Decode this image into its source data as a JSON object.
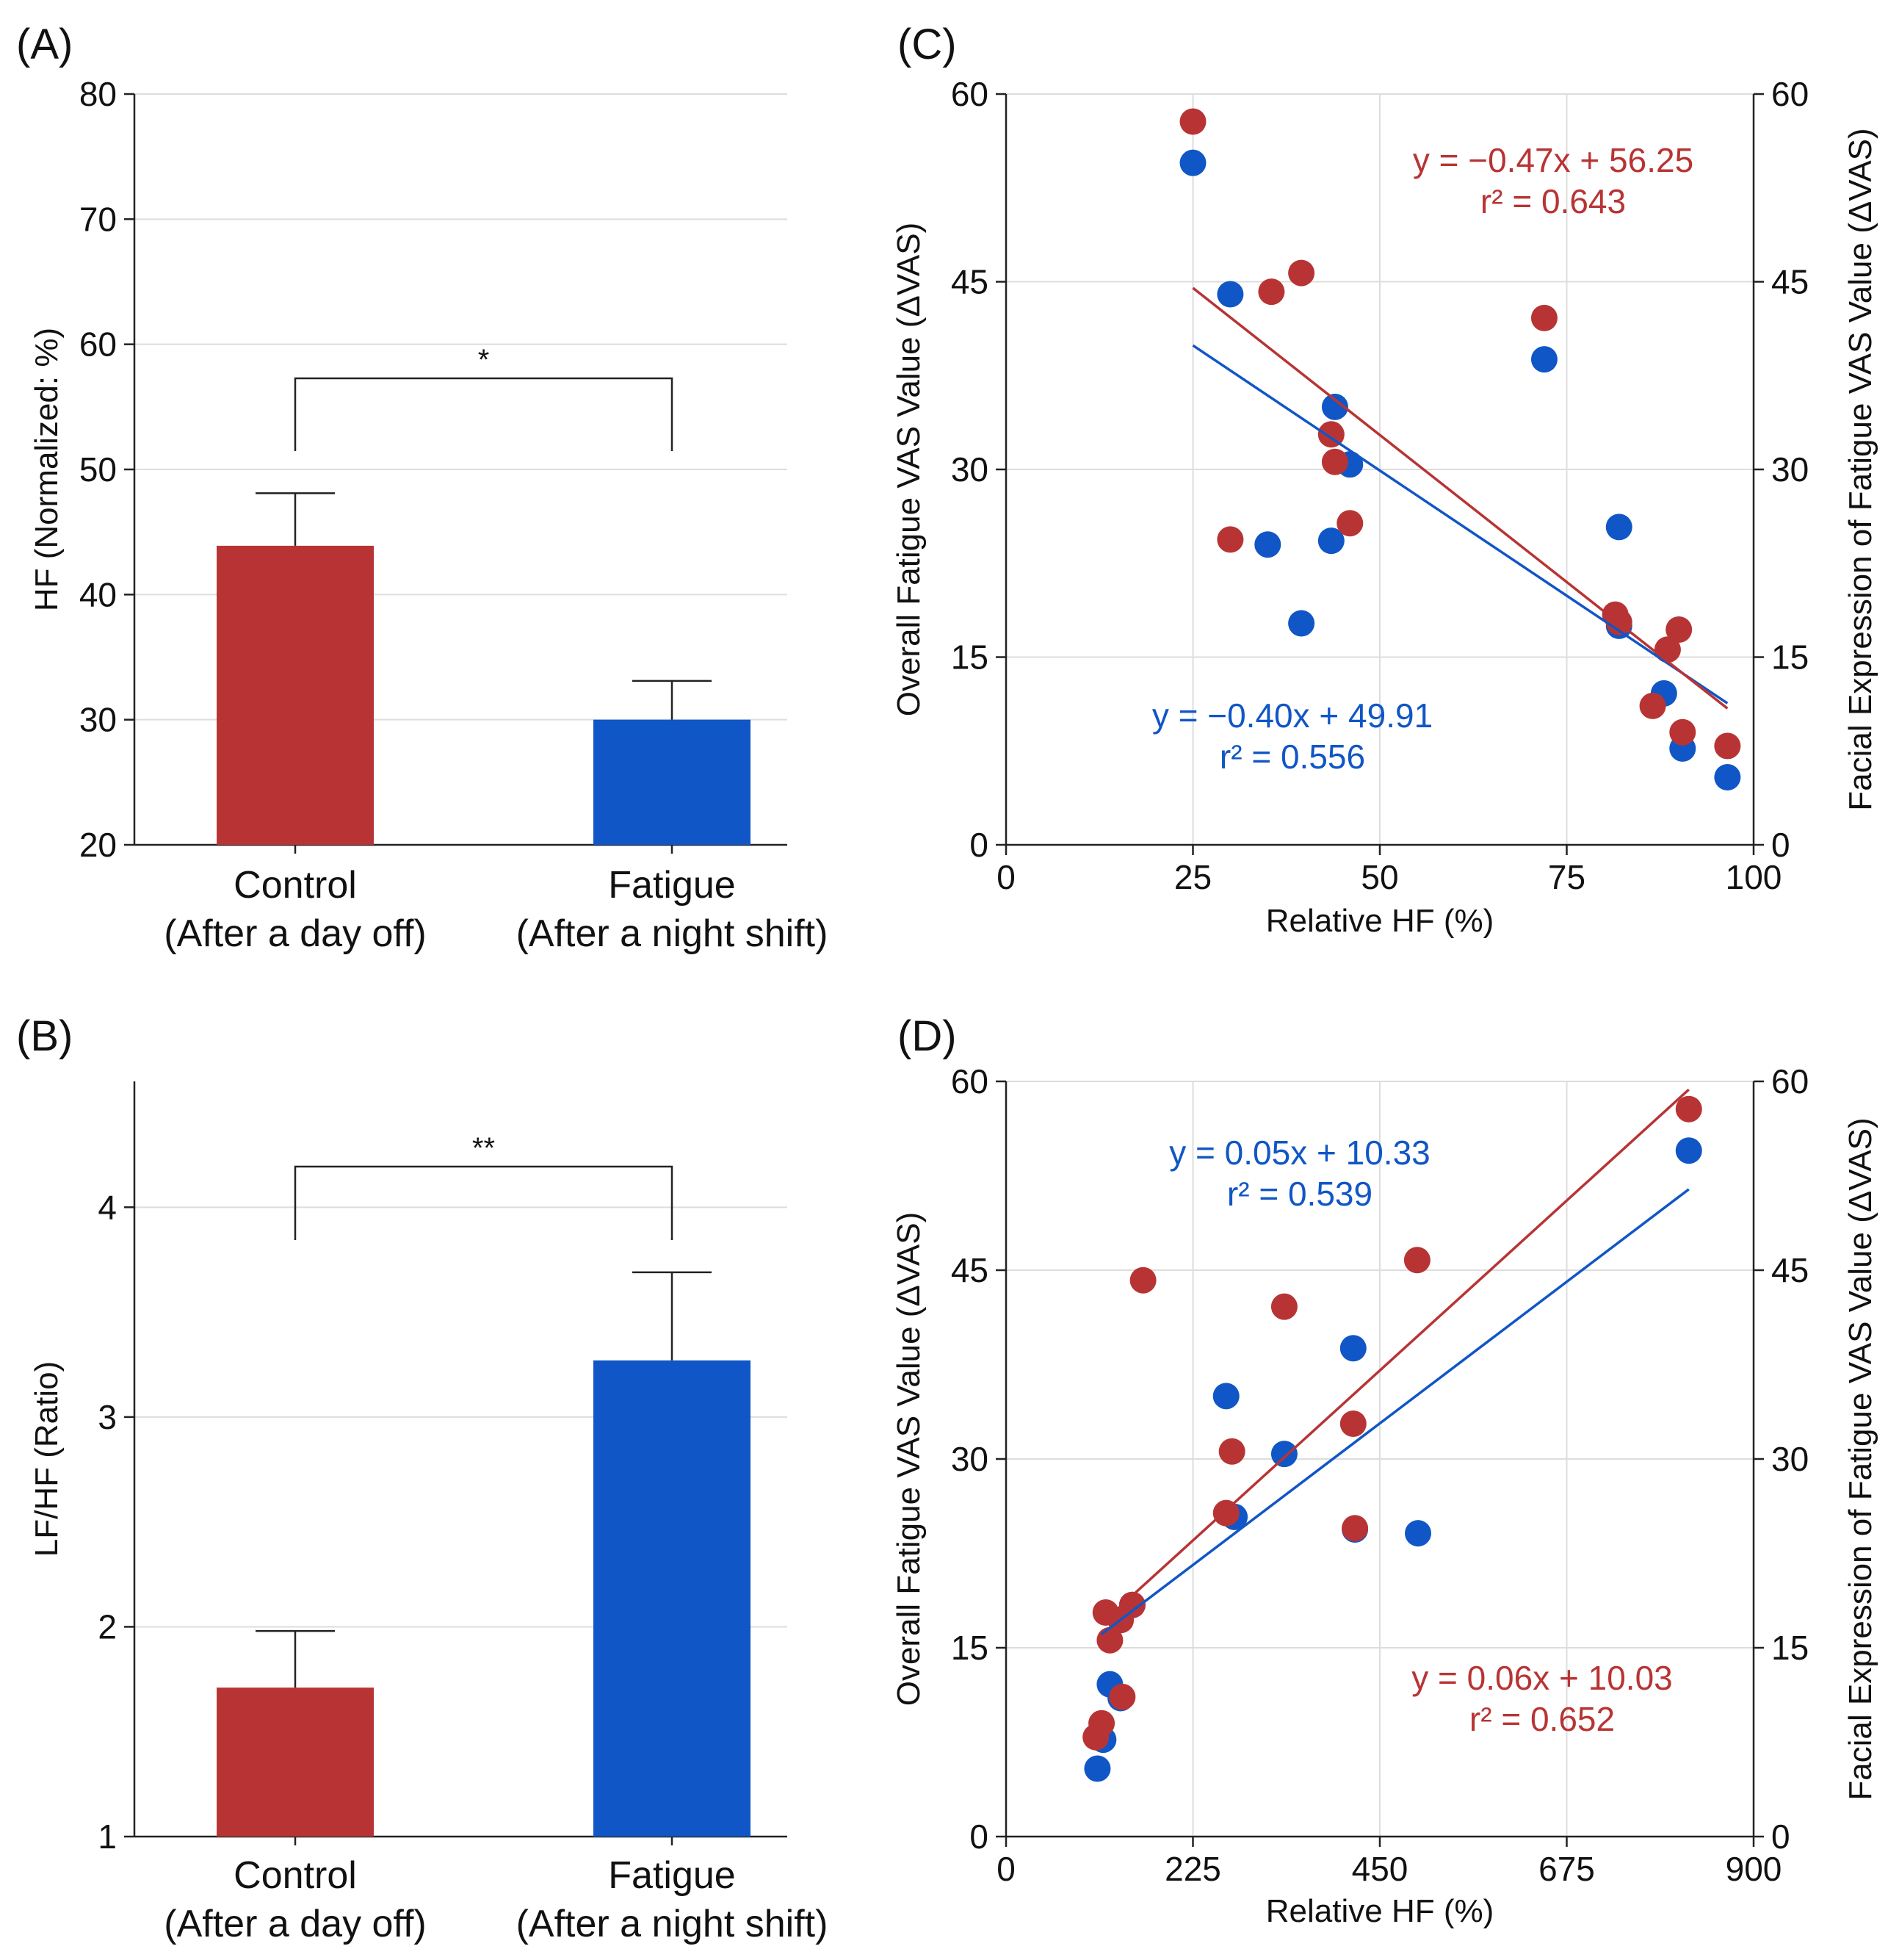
{
  "colors": {
    "red": "#B83434",
    "blue": "#1056C6",
    "grid": "#dddddd",
    "axis": "#222222"
  },
  "chart_data": [
    {
      "panel": "(A)",
      "type": "bar",
      "categories": [
        "Control",
        "Fatigue"
      ],
      "category_sublabels": [
        "(After a day off)",
        "(After a night shift)"
      ],
      "values": [
        43.9,
        30.0
      ],
      "errors": [
        4.2,
        3.1
      ],
      "colors": [
        "#B83434",
        "#1056C6"
      ],
      "ylabel": "HF (Normalized: %)",
      "ylim": [
        20,
        80
      ],
      "yticks": [
        "20",
        "30",
        "40",
        "50",
        "60",
        "70",
        "80"
      ],
      "significance": "*",
      "grid": true
    },
    {
      "panel": "(B)",
      "type": "bar",
      "categories": [
        "Control",
        "Fatigue"
      ],
      "category_sublabels": [
        "(After a day off)",
        "(After a night shift)"
      ],
      "values": [
        1.71,
        3.27
      ],
      "errors": [
        0.27,
        0.42
      ],
      "colors": [
        "#B83434",
        "#1056C6"
      ],
      "ylabel": "LF/HF (Ratio)",
      "ylim": [
        1,
        4.6
      ],
      "yticks": [
        "1",
        "2",
        "3",
        "4"
      ],
      "significance": "**",
      "grid": true
    },
    {
      "panel": "(C)",
      "type": "scatter",
      "xlabel": "Relative HF (%)",
      "ylabel_left": "Overall Fatigue VAS Value (ΔVAS)",
      "ylabel_right": "Facial Expression of Fatigue VAS Value (ΔVAS)",
      "xlim": [
        0,
        100
      ],
      "ylim": [
        0,
        60
      ],
      "xticks": [
        "0",
        "25",
        "50",
        "75",
        "100"
      ],
      "yticks": [
        "0",
        "15",
        "30",
        "45",
        "60"
      ],
      "series": [
        {
          "name": "Overall Fatigue",
          "color": "#1056C6",
          "x": [
            25,
            30,
            35,
            39.5,
            43.5,
            44,
            46,
            72,
            82,
            82,
            88,
            90.5,
            96.5
          ],
          "y": [
            54.5,
            44,
            24,
            17.7,
            24.3,
            35,
            30.4,
            38.8,
            25.4,
            17.5,
            12.1,
            7.7,
            5.4
          ],
          "fit": {
            "slope": -0.4,
            "intercept": 49.91,
            "x_range": [
              25,
              96.5
            ]
          },
          "equation": "y = −0.40x + 49.91",
          "r2": "r² = 0.556"
        },
        {
          "name": "Facial Expression of Fatigue",
          "color": "#B83434",
          "x": [
            25,
            30,
            35.5,
            39.5,
            43.5,
            44,
            46,
            72,
            81.5,
            82,
            86.5,
            88.5,
            90,
            90.5,
            96.5
          ],
          "y": [
            57.8,
            24.4,
            44.2,
            45.7,
            32.8,
            30.6,
            25.7,
            42.1,
            18.4,
            17.8,
            11.1,
            15.6,
            17.2,
            9,
            7.9
          ],
          "fit": {
            "slope": -0.47,
            "intercept": 56.25,
            "x_range": [
              25,
              96.5
            ]
          },
          "equation": "y = −0.47x + 56.25",
          "r2": "r² = 0.643"
        }
      ]
    },
    {
      "panel": "(D)",
      "type": "scatter",
      "xlabel": "Relative HF (%)",
      "ylabel_left": "Overall Fatigue VAS Value (ΔVAS)",
      "ylabel_right": "Facial Expression of Fatigue VAS Value (ΔVAS)",
      "xlim": [
        0,
        900
      ],
      "ylim": [
        0,
        60
      ],
      "xticks": [
        "0",
        "225",
        "450",
        "675",
        "900"
      ],
      "yticks": [
        "0",
        "15",
        "30",
        "45",
        "60"
      ],
      "series": [
        {
          "name": "Overall Fatigue",
          "color": "#1056C6",
          "x": [
            110,
            117,
            125,
            138,
            152,
            265,
            275,
            335,
            418,
            420,
            496,
            822
          ],
          "y": [
            5.4,
            7.7,
            12.1,
            11,
            18.4,
            35,
            25.4,
            30.4,
            38.8,
            24.4,
            24.1,
            54.5
          ],
          "fit": {
            "slope": 0.05,
            "intercept": 10.33,
            "x_range": [
              115,
              822
            ]
          },
          "equation": "y = 0.05x + 10.33",
          "r2": "r² = 0.539"
        },
        {
          "name": "Facial Expression of Fatigue",
          "color": "#B83434",
          "x": [
            108,
            115,
            120,
            125,
            138,
            140,
            152,
            165,
            265,
            272,
            335,
            418,
            420,
            495,
            822
          ],
          "y": [
            7.9,
            9,
            17.8,
            15.6,
            17.2,
            11.1,
            18.4,
            44.2,
            25.7,
            30.6,
            42.1,
            32.8,
            24.5,
            45.8,
            57.8
          ],
          "fit": {
            "slope": 0.06,
            "intercept": 10.03,
            "x_range": [
              115,
              822
            ]
          },
          "equation": "y = 0.06x + 10.03",
          "r2": "r² = 0.652"
        }
      ]
    }
  ]
}
